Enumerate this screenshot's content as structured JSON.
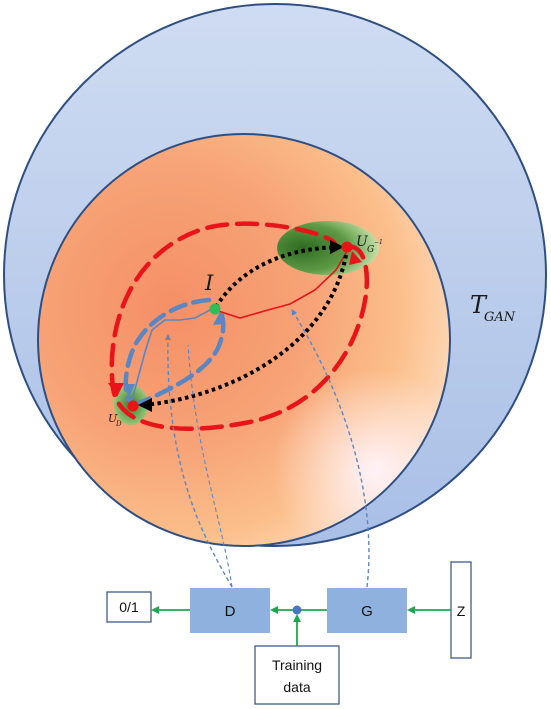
{
  "diagram": {
    "outer_set_label": "T",
    "outer_set_subscript": "GAN",
    "point_i_label": "I",
    "point_ud_label": "U",
    "point_ud_subscript": "D",
    "point_ug_label": "U",
    "point_ug_subscript": "G",
    "point_ug_superscript": "−1"
  },
  "blocks": {
    "output_label": "0/1",
    "discriminator_label": "D",
    "generator_label": "G",
    "noise_label": "Z",
    "training_line1": "Training",
    "training_line2": "data"
  },
  "colors": {
    "outer_circle": "#c3d2ee",
    "outer_stroke": "#2f4f82",
    "inner_gradient": [
      "#ffd9bf",
      "#f79a72",
      "#fbc792",
      "#ffe7f1"
    ],
    "red_dashed": "#e8141a",
    "blue_dashed": "#5b86c4",
    "block_fill": "#8fb1de",
    "arrow_green": "#1ea84e",
    "green_ellipse": "#3f7d2e",
    "dot_green": "#2cbf56",
    "dot_red": "#e81515"
  }
}
